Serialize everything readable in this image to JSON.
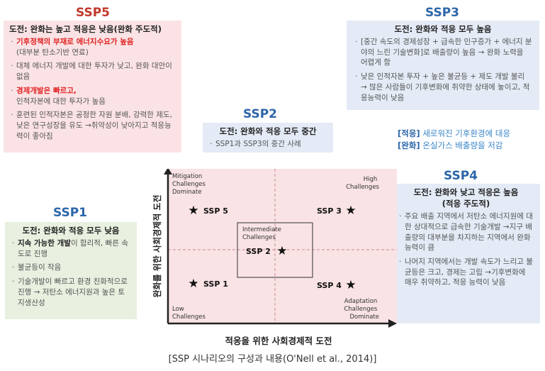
{
  "ssp5": {
    "title": "SSP5",
    "heading": "도전: 완화는 높고 적응은 낮음(완화 주도적)",
    "items": [
      {
        "red": "기후정책의 부재로 에너지수요가 높음",
        "rest": "(대부분 탄소기반 연료)"
      },
      {
        "red": "",
        "rest": "대체 에너지 개발에 대한 투자가 낮고, 완화 대안이 없음"
      },
      {
        "red": "경제개발은 빠르고,",
        "rest": "인적자본에 대한 투자가 높음"
      },
      {
        "red": "",
        "rest": "훈련된 인적자본은 공정한 자원 분배, 강력한 제도, 낮은 연구성장을 유도 →취약성이 낮아지고 적응능력이 좋아짐"
      }
    ]
  },
  "ssp3": {
    "title": "SSP3",
    "heading": "도전: 완화와 적응 모두 높음",
    "items": [
      "[중간 속도의 경제성장 + 급속한 인구증가 + 에너지 분야의 느린 기술변화]로 배출량이 높음 → 완화 노력을 어렵게 함",
      "낮은 인적자본 투자 + 높은 불균등 + 제도 개발 불리 → 많은 사람들이 기후변화에 취약한 상태에 놓이고, 적응능력이 낮음"
    ]
  },
  "ssp2": {
    "title": "SSP2",
    "heading": "도전: 완화와 적응 모두 중간",
    "items": [
      "SSP1과  SSP3의 중간 사례"
    ]
  },
  "legend": {
    "adapt_tag": "[적응]",
    "adapt_text": "새로워진 기후환경에 대응",
    "mitig_tag": "[완화]",
    "mitig_text": "온실가스 배출량을 저감"
  },
  "ssp4": {
    "title": "SSP4",
    "heading": "도전: 완화와 낮고 적응은 높음",
    "heading2": "(적응 주도적)",
    "items": [
      "주요 배출 지역에서 저탄소 에너지원에 대한 상대적으로 급속한 기술개발 →지구 배출량의 대부분을 차지하는 지역에서 완화 능력이 큼",
      "나머지 지역에서는 개발 속도가 느리고 불균등은 크고, 경제는 고립 →기후변화에 매우 취약하고, 적응 능력이 낮음"
    ]
  },
  "ssp1": {
    "title": "SSP1",
    "heading": "도전: 완화와 적응 모두 낮음",
    "items": [
      {
        "bold": "지속 가능한 개발",
        "rest": "이 합리적, 빠른 속도로 진행"
      },
      {
        "bold": "",
        "rest": "불균등이 작음"
      },
      {
        "bold": "",
        "rest": "기술개발이 빠르고 환경 친화적으로 진행 → 저탄소 에너지원과 높은 토지생산성"
      }
    ]
  },
  "chart": {
    "y_axis_label": "완화를 위한 사회경제적 도전",
    "x_axis_label": "적응을 위한 사회경제적 도전",
    "corner_top_left": [
      "Mitigation",
      "Challenges",
      "Dominate"
    ],
    "corner_top_right": [
      "High",
      "Challenges"
    ],
    "corner_bottom_left": [
      "Low",
      "Challenges"
    ],
    "corner_bottom_right": [
      "Adaptation",
      "Challenges",
      "Dominate"
    ],
    "intermediate": [
      "Intermediate",
      "Challenges"
    ],
    "points": [
      {
        "label": "SSP 5",
        "quadrant": "top-left"
      },
      {
        "label": "SSP 3",
        "quadrant": "top-right"
      },
      {
        "label": "SSP 2",
        "quadrant": "center"
      },
      {
        "label": "SSP 1",
        "quadrant": "bottom-left"
      },
      {
        "label": "SSP 4",
        "quadrant": "bottom-right"
      }
    ],
    "star": "★",
    "background_color": "#f9e3e5"
  },
  "caption": "[SSP 시나리오의 구성과 내용(O'Nell et al., 2014)]"
}
